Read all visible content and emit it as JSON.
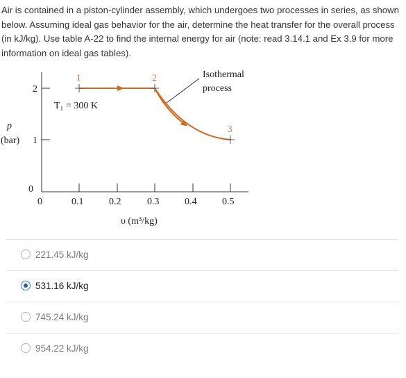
{
  "question": "Air is contained in a piston-cylinder assembly, which undergoes two processes in series, as shown below. Assuming ideal gas behavior for the air, determine the heat transfer for the overall process (in kJ/kg). Use table A-22 to find the internal energy for air (note: read 3.14.1 and Ex 3.9 for more information on ideal gas tables).",
  "colors": {
    "process_line": "#d2691e",
    "selected_radio": "#1f62a8"
  },
  "diagram": {
    "y_label_top": "p",
    "y_label_bottom": "(bar)",
    "x_label": "υ (m³/kg)",
    "temperature_label": "T₁ = 300 K",
    "annotation_line1": "Isothermal",
    "annotation_line2": "process",
    "y_ticks": [
      "0",
      "1",
      "2"
    ],
    "x_ticks": [
      "0",
      "0.1",
      "0.2",
      "0.3",
      "0.4",
      "0.5"
    ],
    "state_labels": [
      "1",
      "2",
      "3"
    ]
  },
  "chart_data": {
    "type": "line",
    "xlabel": "υ (m³/kg)",
    "ylabel": "p (bar)",
    "xlim": [
      0,
      0.55
    ],
    "ylim": [
      0,
      2.5
    ],
    "x_ticks": [
      0,
      0.1,
      0.2,
      0.3,
      0.4,
      0.5
    ],
    "y_ticks": [
      0,
      1,
      2
    ],
    "states": [
      {
        "label": "1",
        "x": 0.1,
        "y": 2
      },
      {
        "label": "2",
        "x": 0.3,
        "y": 2
      },
      {
        "label": "3",
        "x": 0.5,
        "y": 1.2
      }
    ],
    "annotations": [
      "T₁ = 300 K",
      "Isothermal process"
    ]
  },
  "options": [
    {
      "label": "221.45 kJ/kg",
      "selected": false
    },
    {
      "label": "531.16 kJ/kg",
      "selected": true
    },
    {
      "label": "745.24 kJ/kg",
      "selected": false
    },
    {
      "label": "954.22 kJ/kg",
      "selected": false
    }
  ]
}
